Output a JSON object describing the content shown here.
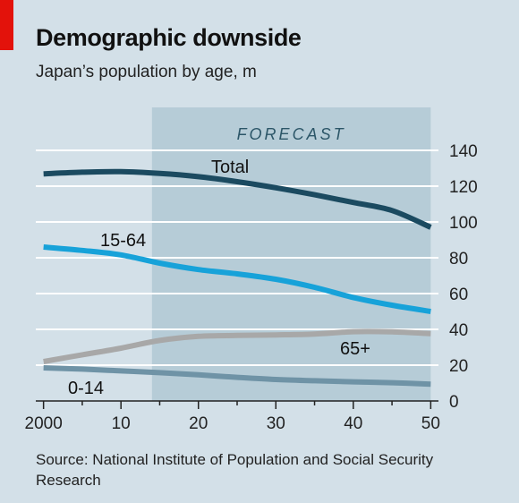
{
  "header": {
    "title": "Demographic downside",
    "subtitle": "Japan’s population by age, m"
  },
  "footer": {
    "source": "Source: National Institute of Population and Social Security Research"
  },
  "colors": {
    "background": "#d3e0e8",
    "forecast_band": "#b6ccd7",
    "forecast_text": "#2c5668",
    "gridline": "#ffffff",
    "total": "#1b4a60",
    "working_age": "#17a2d9",
    "elderly": "#a8a8a8",
    "children": "#6f93a6",
    "red_tag": "#e3120b"
  },
  "chart_data": {
    "type": "line",
    "x_tick_labels": [
      "2000",
      "10",
      "20",
      "30",
      "40",
      "50"
    ],
    "x_ticks": [
      2000,
      2010,
      2020,
      2030,
      2040,
      2050
    ],
    "xlim": [
      1999,
      2051
    ],
    "ylim": [
      0,
      140
    ],
    "y_ticks": [
      0,
      20,
      40,
      60,
      80,
      100,
      120,
      140
    ],
    "y_tick_labels": [
      "0",
      "20",
      "40",
      "60",
      "80",
      "100",
      "120",
      "140"
    ],
    "grid": true,
    "forecast": {
      "label": "FORECAST",
      "start": 2014,
      "end": 2050
    },
    "series": [
      {
        "name": "Total",
        "x": [
          2000,
          2005,
          2010,
          2015,
          2020,
          2025,
          2030,
          2035,
          2040,
          2045,
          2050
        ],
        "values": [
          126.9,
          127.8,
          128.1,
          127.1,
          125.3,
          122.5,
          119.1,
          115.2,
          110.9,
          106.4,
          97
        ]
      },
      {
        "name": "15-64",
        "x": [
          2000,
          2005,
          2010,
          2015,
          2020,
          2025,
          2030,
          2035,
          2040,
          2045,
          2050
        ],
        "values": [
          86,
          84.1,
          81.6,
          77,
          73.4,
          71,
          68,
          63.5,
          57.8,
          53.5,
          50
        ]
      },
      {
        "name": "65+",
        "x": [
          2000,
          2005,
          2010,
          2015,
          2020,
          2025,
          2030,
          2035,
          2040,
          2045,
          2050
        ],
        "values": [
          22,
          25.8,
          29.5,
          33.8,
          36.1,
          36.6,
          36.9,
          37.4,
          38.7,
          38.6,
          37.6
        ]
      },
      {
        "name": "0-14",
        "x": [
          2000,
          2005,
          2010,
          2015,
          2020,
          2025,
          2030,
          2035,
          2040,
          2045,
          2050
        ],
        "values": [
          18.5,
          17.8,
          16.8,
          15.8,
          14.6,
          13.2,
          12,
          11.3,
          10.7,
          10.2,
          9.4
        ]
      }
    ]
  }
}
